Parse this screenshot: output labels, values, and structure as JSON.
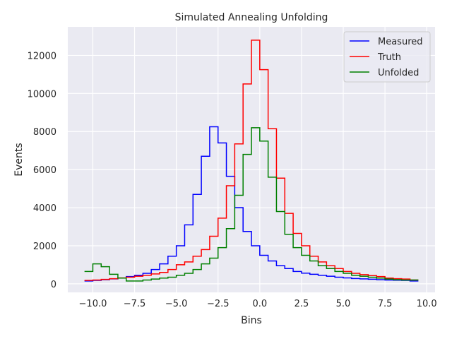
{
  "chart_data": {
    "type": "line",
    "step": true,
    "title": "Simulated Annealing Unfolding",
    "xlabel": "Bins",
    "ylabel": "Events",
    "xlim": [
      -11.5,
      10.5
    ],
    "ylim": [
      -450,
      13500
    ],
    "xticks": [
      -10.0,
      -7.5,
      -5.0,
      -2.5,
      0.0,
      2.5,
      5.0,
      7.5,
      10.0
    ],
    "xtick_labels": [
      "−10.0",
      "−7.5",
      "−5.0",
      "−2.5",
      "0.0",
      "2.5",
      "5.0",
      "7.5",
      "10.0"
    ],
    "yticks": [
      0,
      2000,
      4000,
      6000,
      8000,
      10000,
      12000
    ],
    "ytick_labels": [
      "0",
      "2000",
      "4000",
      "6000",
      "8000",
      "10000",
      "12000"
    ],
    "grid": true,
    "legend_position": "top-right",
    "bin_edges": [
      -10.5,
      -10.0,
      -9.5,
      -9.0,
      -8.5,
      -8.0,
      -7.5,
      -7.0,
      -6.5,
      -6.0,
      -5.5,
      -5.0,
      -4.5,
      -4.0,
      -3.5,
      -3.0,
      -2.5,
      -2.0,
      -1.5,
      -1.0,
      -0.5,
      0.0,
      0.5,
      1.0,
      1.5,
      2.0,
      2.5,
      3.0,
      3.5,
      4.0,
      4.5,
      5.0,
      5.5,
      6.0,
      6.5,
      7.0,
      7.5,
      8.0,
      8.5,
      9.0,
      9.5
    ],
    "series": [
      {
        "name": "Measured",
        "color": "#0000ff",
        "values": [
          150,
          180,
          220,
          260,
          300,
          380,
          450,
          550,
          750,
          1050,
          1450,
          2000,
          3100,
          4700,
          6700,
          8250,
          7400,
          5650,
          4000,
          2750,
          2000,
          1500,
          1200,
          950,
          800,
          650,
          560,
          500,
          450,
          400,
          350,
          310,
          280,
          260,
          240,
          220,
          200,
          190,
          180,
          150
        ]
      },
      {
        "name": "Truth",
        "color": "#ff0000",
        "values": [
          180,
          200,
          230,
          270,
          310,
          350,
          400,
          450,
          520,
          600,
          750,
          1000,
          1150,
          1450,
          1800,
          2500,
          3450,
          5150,
          7350,
          10500,
          12800,
          11250,
          8150,
          5550,
          3700,
          2650,
          2000,
          1450,
          1150,
          950,
          800,
          650,
          550,
          480,
          430,
          380,
          300,
          270,
          250,
          200
        ]
      },
      {
        "name": "Unfolded",
        "color": "#008000",
        "values": [
          650,
          1050,
          900,
          500,
          300,
          150,
          150,
          200,
          250,
          300,
          350,
          450,
          550,
          750,
          1050,
          1350,
          1900,
          2900,
          4650,
          6800,
          8200,
          7500,
          5600,
          3800,
          2600,
          1900,
          1500,
          1200,
          950,
          800,
          650,
          550,
          450,
          400,
          350,
          300,
          250,
          220,
          200,
          200
        ]
      }
    ]
  }
}
